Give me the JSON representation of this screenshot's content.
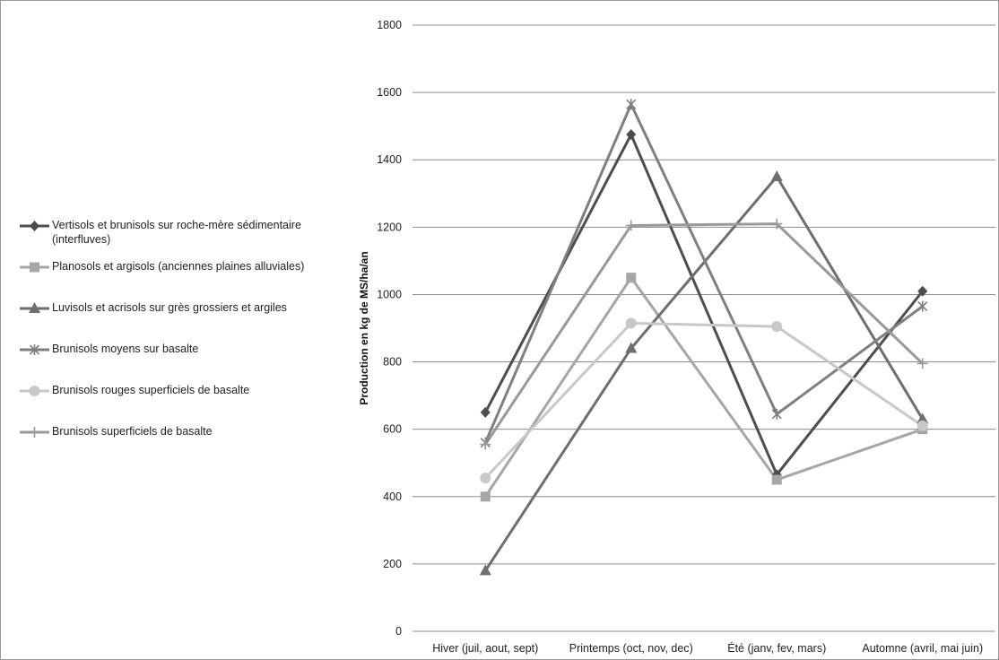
{
  "chart_data": {
    "type": "line",
    "title": "",
    "xlabel": "",
    "ylabel": "Production  en kg de MS/ha/an",
    "ylim": [
      0,
      1800
    ],
    "yticks": [
      0,
      200,
      400,
      600,
      800,
      1000,
      1200,
      1400,
      1600,
      1800
    ],
    "grid": "horizontal",
    "legend_position": "left",
    "categories": [
      "Hiver (juil, aout, sept)",
      "Printemps (oct, nov, dec)",
      "Été (janv, fev, mars)",
      "Automne (avril, mai juin)"
    ],
    "series": [
      {
        "name": "Vertisols et brunisols sur roche-mère sédimentaire (interfluves)",
        "values": [
          650,
          1475,
          465,
          1010
        ],
        "color": "#4d4d4d",
        "marker": "diamond"
      },
      {
        "name": "Planosols et argisols (anciennes plaines alluviales)",
        "values": [
          400,
          1050,
          450,
          600
        ],
        "color": "#a6a6a6",
        "marker": "square"
      },
      {
        "name": "Luvisols et acrisols sur grès grossiers et argiles",
        "values": [
          180,
          840,
          1350,
          630
        ],
        "color": "#6e6e6e",
        "marker": "triangle"
      },
      {
        "name": "Brunisols moyens sur basalte",
        "values": [
          560,
          1565,
          645,
          965
        ],
        "color": "#7f7f7f",
        "marker": "star"
      },
      {
        "name": "Brunisols rouges superficiels de basalte",
        "values": [
          455,
          915,
          905,
          610
        ],
        "color": "#c8c8c8",
        "marker": "circle"
      },
      {
        "name": "Brunisols superficiels de basalte",
        "values": [
          555,
          1205,
          1210,
          795
        ],
        "color": "#999999",
        "marker": "plus"
      }
    ]
  }
}
